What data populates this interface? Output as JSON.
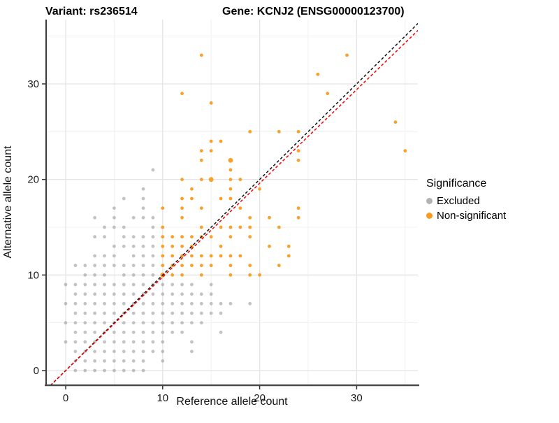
{
  "chart_data": {
    "type": "scatter",
    "title_left": "Variant: rs236514",
    "title_right": "Gene: KCNJ2 (ENSG00000123700)",
    "xlabel": "Reference allele count",
    "ylabel": "Alternative allele count",
    "xticks": [
      0,
      10,
      20,
      30
    ],
    "yticks": [
      0,
      10,
      20,
      30
    ],
    "minor_xticks": [
      5,
      15,
      25,
      35
    ],
    "minor_yticks": [
      5,
      15,
      25,
      35
    ],
    "xlim": [
      -2.02,
      36.3
    ],
    "ylim": [
      -1.46,
      36.7
    ],
    "grid": true,
    "legend": {
      "title": "Significance",
      "items": [
        {
          "label": "Excluded",
          "color": "#b3b3b3"
        },
        {
          "label": "Non-significant",
          "color": "#f89c20"
        }
      ]
    },
    "lines": [
      {
        "name": "identity-line",
        "slope": 1.0,
        "intercept": 0,
        "color": "#101010",
        "dashed": true
      },
      {
        "name": "fitted-line",
        "slope": 0.98,
        "intercept": 0,
        "color": "#f40000",
        "dashed": true
      }
    ],
    "series": [
      {
        "name": "Excluded",
        "color": "#9e9e9e",
        "opacity": 0.62,
        "points": [
          [
            1,
            0
          ],
          [
            2,
            0
          ],
          [
            3,
            0
          ],
          [
            4,
            0
          ],
          [
            5,
            0
          ],
          [
            6,
            0
          ],
          [
            7,
            0
          ],
          [
            8,
            0
          ],
          [
            1,
            1
          ],
          [
            2,
            1
          ],
          [
            3,
            1
          ],
          [
            4,
            1
          ],
          [
            5,
            1
          ],
          [
            6,
            1
          ],
          [
            7,
            1
          ],
          [
            8,
            1
          ],
          [
            10,
            1
          ],
          [
            1,
            2
          ],
          [
            2,
            2
          ],
          [
            3,
            2
          ],
          [
            4,
            2
          ],
          [
            5,
            2
          ],
          [
            6,
            2
          ],
          [
            7,
            2
          ],
          [
            8,
            2
          ],
          [
            9,
            2
          ],
          [
            10,
            2
          ],
          [
            13,
            2
          ],
          [
            0,
            3
          ],
          [
            1,
            3
          ],
          [
            2,
            3
          ],
          [
            3,
            3
          ],
          [
            4,
            3
          ],
          [
            5,
            3
          ],
          [
            6,
            3
          ],
          [
            7,
            3
          ],
          [
            8,
            3
          ],
          [
            9,
            3
          ],
          [
            10,
            3
          ],
          [
            13,
            3
          ],
          [
            1,
            4
          ],
          [
            2,
            4
          ],
          [
            3,
            4
          ],
          [
            4,
            4
          ],
          [
            5,
            4
          ],
          [
            6,
            4
          ],
          [
            7,
            4
          ],
          [
            8,
            4
          ],
          [
            9,
            4
          ],
          [
            10,
            4
          ],
          [
            11,
            4
          ],
          [
            12,
            4
          ],
          [
            16,
            4
          ],
          [
            0,
            5
          ],
          [
            1,
            5
          ],
          [
            2,
            5
          ],
          [
            3,
            5
          ],
          [
            4,
            5
          ],
          [
            5,
            5
          ],
          [
            6,
            5
          ],
          [
            7,
            5
          ],
          [
            8,
            5
          ],
          [
            9,
            5
          ],
          [
            10,
            5
          ],
          [
            11,
            5
          ],
          [
            12,
            5
          ],
          [
            13,
            5
          ],
          [
            14,
            5
          ],
          [
            1,
            6
          ],
          [
            2,
            6
          ],
          [
            3,
            6
          ],
          [
            4,
            6
          ],
          [
            5,
            6
          ],
          [
            6,
            6
          ],
          [
            7,
            6
          ],
          [
            8,
            6
          ],
          [
            9,
            6
          ],
          [
            10,
            6
          ],
          [
            11,
            6
          ],
          [
            12,
            6
          ],
          [
            13,
            6
          ],
          [
            14,
            6
          ],
          [
            15,
            6
          ],
          [
            16,
            6
          ],
          [
            0,
            7
          ],
          [
            1,
            7
          ],
          [
            2,
            7
          ],
          [
            3,
            7
          ],
          [
            4,
            7
          ],
          [
            5,
            7
          ],
          [
            6,
            7
          ],
          [
            7,
            7
          ],
          [
            8,
            7
          ],
          [
            9,
            7
          ],
          [
            10,
            7
          ],
          [
            11,
            7
          ],
          [
            12,
            7
          ],
          [
            13,
            7
          ],
          [
            14,
            7
          ],
          [
            15,
            7
          ],
          [
            16,
            7
          ],
          [
            17,
            7
          ],
          [
            19,
            7
          ],
          [
            1,
            8
          ],
          [
            2,
            8
          ],
          [
            3,
            8
          ],
          [
            4,
            8
          ],
          [
            5,
            8
          ],
          [
            6,
            8
          ],
          [
            7,
            8
          ],
          [
            8,
            8
          ],
          [
            9,
            8
          ],
          [
            10,
            8
          ],
          [
            11,
            8
          ],
          [
            12,
            8
          ],
          [
            13,
            8
          ],
          [
            14,
            8
          ],
          [
            15,
            8
          ],
          [
            0,
            9
          ],
          [
            1,
            9
          ],
          [
            2,
            9
          ],
          [
            3,
            9
          ],
          [
            4,
            9
          ],
          [
            5,
            9
          ],
          [
            6,
            9
          ],
          [
            7,
            9
          ],
          [
            8,
            9
          ],
          [
            9,
            9
          ],
          [
            10,
            9
          ],
          [
            11,
            9
          ],
          [
            12,
            9
          ],
          [
            13,
            9
          ],
          [
            15,
            9
          ],
          [
            2,
            10
          ],
          [
            3,
            10
          ],
          [
            4,
            10
          ],
          [
            6,
            10
          ],
          [
            7,
            10
          ],
          [
            8,
            10
          ],
          [
            9,
            10
          ],
          [
            1,
            11
          ],
          [
            2,
            11
          ],
          [
            3,
            11
          ],
          [
            4,
            11
          ],
          [
            5,
            11
          ],
          [
            6,
            11
          ],
          [
            7,
            11
          ],
          [
            8,
            11
          ],
          [
            9,
            11
          ],
          [
            3,
            12
          ],
          [
            4,
            12
          ],
          [
            5,
            12
          ],
          [
            7,
            12
          ],
          [
            8,
            12
          ],
          [
            9,
            12
          ],
          [
            5,
            13
          ],
          [
            6,
            13
          ],
          [
            7,
            13
          ],
          [
            8,
            13
          ],
          [
            9,
            13
          ],
          [
            3,
            14
          ],
          [
            4,
            14
          ],
          [
            6,
            14
          ],
          [
            7,
            14
          ],
          [
            8,
            14
          ],
          [
            9,
            14
          ],
          [
            4,
            15
          ],
          [
            5,
            15
          ],
          [
            6,
            15
          ],
          [
            9,
            15
          ],
          [
            3,
            16
          ],
          [
            5,
            16
          ],
          [
            7,
            16
          ],
          [
            8,
            16
          ],
          [
            9,
            16
          ],
          [
            5,
            17
          ],
          [
            8,
            17
          ],
          [
            6,
            18
          ],
          [
            8,
            18
          ],
          [
            8,
            19
          ],
          [
            9,
            21
          ]
        ],
        "large_points": []
      },
      {
        "name": "Non-significant",
        "color": "#f89c20",
        "opacity": 0.95,
        "points": [
          [
            11,
            10
          ],
          [
            12,
            10
          ],
          [
            14,
            10
          ],
          [
            17,
            10
          ],
          [
            19,
            10
          ],
          [
            20,
            10
          ],
          [
            10,
            11
          ],
          [
            11,
            11
          ],
          [
            12,
            11
          ],
          [
            13,
            11
          ],
          [
            14,
            11
          ],
          [
            15,
            11
          ],
          [
            17,
            11
          ],
          [
            19,
            11
          ],
          [
            22,
            11
          ],
          [
            10,
            12
          ],
          [
            11,
            12
          ],
          [
            12,
            12
          ],
          [
            13,
            12
          ],
          [
            14,
            12
          ],
          [
            15,
            12
          ],
          [
            16,
            12
          ],
          [
            17,
            12
          ],
          [
            18,
            12
          ],
          [
            23,
            12
          ],
          [
            10,
            13
          ],
          [
            11,
            13
          ],
          [
            12,
            13
          ],
          [
            13,
            13
          ],
          [
            16,
            13
          ],
          [
            21,
            13
          ],
          [
            23,
            13
          ],
          [
            10,
            14
          ],
          [
            11,
            14
          ],
          [
            12,
            14
          ],
          [
            13,
            14
          ],
          [
            14,
            14
          ],
          [
            15,
            14
          ],
          [
            17,
            14
          ],
          [
            19,
            14
          ],
          [
            10,
            15
          ],
          [
            14,
            15
          ],
          [
            16,
            15
          ],
          [
            17,
            15
          ],
          [
            18,
            15
          ],
          [
            19,
            15
          ],
          [
            22,
            15
          ],
          [
            12,
            16
          ],
          [
            19,
            16
          ],
          [
            21,
            16
          ],
          [
            24,
            16
          ],
          [
            10,
            17
          ],
          [
            12,
            17
          ],
          [
            14,
            17
          ],
          [
            18,
            17
          ],
          [
            24,
            17
          ],
          [
            12,
            18
          ],
          [
            13,
            18
          ],
          [
            16,
            18
          ],
          [
            17,
            18
          ],
          [
            13,
            19
          ],
          [
            17,
            19
          ],
          [
            20,
            19
          ],
          [
            12,
            20
          ],
          [
            14,
            20
          ],
          [
            17,
            20
          ],
          [
            18,
            20
          ],
          [
            17,
            21
          ],
          [
            14,
            22
          ],
          [
            24,
            22
          ],
          [
            14,
            23
          ],
          [
            15,
            23
          ],
          [
            24,
            23
          ],
          [
            35,
            23
          ],
          [
            15,
            24
          ],
          [
            16,
            24
          ],
          [
            19,
            25
          ],
          [
            22,
            25
          ],
          [
            24,
            25
          ],
          [
            34,
            26
          ],
          [
            15,
            28
          ],
          [
            12,
            29
          ],
          [
            27,
            29
          ],
          [
            26,
            31
          ],
          [
            14,
            33
          ],
          [
            29,
            33
          ]
        ],
        "large_points": [
          [
            10,
            10
          ],
          [
            15,
            20
          ],
          [
            17,
            22
          ]
        ]
      }
    ]
  }
}
